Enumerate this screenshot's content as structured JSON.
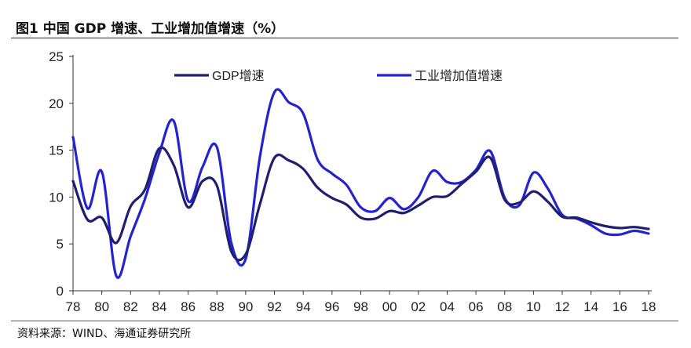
{
  "header": {
    "title": "图1  中国 GDP 增速、工业增加值增速（%）"
  },
  "footer": {
    "source": "资料来源：WIND、海通证券研究所"
  },
  "chart_data": {
    "type": "line",
    "title": "图1  中国 GDP 增速、工业增加值增速（%）",
    "xlabel": "",
    "ylabel": "",
    "ylim": [
      0,
      25
    ],
    "yticks": [
      "0",
      "5",
      "10",
      "15",
      "20",
      "25"
    ],
    "xticks": [
      "78",
      "80",
      "82",
      "84",
      "86",
      "88",
      "90",
      "92",
      "94",
      "96",
      "98",
      "00",
      "02",
      "04",
      "06",
      "08",
      "10",
      "12",
      "14",
      "16",
      "18"
    ],
    "grid": false,
    "legend": "top",
    "x": [
      1978,
      1979,
      1980,
      1981,
      1982,
      1983,
      1984,
      1985,
      1986,
      1987,
      1988,
      1989,
      1990,
      1991,
      1992,
      1993,
      1994,
      1995,
      1996,
      1997,
      1998,
      1999,
      2000,
      2001,
      2002,
      2003,
      2004,
      2005,
      2006,
      2007,
      2008,
      2009,
      2010,
      2011,
      2012,
      2013,
      2014,
      2015,
      2016,
      2017,
      2018
    ],
    "series": [
      {
        "name": "GDP增速",
        "color": "#1f1f6e",
        "values": [
          11.7,
          7.6,
          7.8,
          5.1,
          9.0,
          10.8,
          15.2,
          13.4,
          8.9,
          11.7,
          11.2,
          4.2,
          3.9,
          9.3,
          14.2,
          13.9,
          13.0,
          11.0,
          9.9,
          9.2,
          7.8,
          7.7,
          8.5,
          8.3,
          9.1,
          10.0,
          10.1,
          11.4,
          12.7,
          14.2,
          9.7,
          9.4,
          10.6,
          9.5,
          7.9,
          7.8,
          7.3,
          6.9,
          6.7,
          6.8,
          6.6
        ]
      },
      {
        "name": "工业增加值增速",
        "color": "#2323d0",
        "values": [
          16.4,
          8.8,
          12.7,
          1.6,
          5.8,
          9.8,
          14.7,
          18.1,
          9.6,
          13.2,
          15.3,
          5.1,
          3.4,
          14.4,
          21.2,
          20.1,
          18.9,
          14.0,
          12.5,
          11.3,
          8.9,
          8.5,
          9.9,
          8.7,
          10.0,
          12.8,
          11.6,
          11.6,
          12.9,
          14.9,
          9.9,
          9.1,
          12.6,
          10.9,
          8.1,
          7.7,
          7.0,
          6.1,
          6.0,
          6.4,
          6.1
        ]
      }
    ]
  }
}
